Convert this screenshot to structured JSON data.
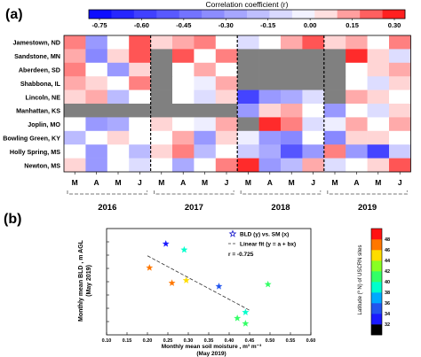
{
  "panel_a": {
    "label": "(a)",
    "colorbar_title": "Correlation coefficient (r)",
    "colorbar_ticks": [
      "-0.75",
      "-0.60",
      "-0.45",
      "-0.30",
      "-0.15",
      "0.00",
      "0.15",
      "0.30"
    ],
    "sites": [
      "Jamestown, ND",
      "Sandstone, MN",
      "Aberdeen, SD",
      "Shabbona, IL",
      "Lincoln, NE",
      "Manhattan, KS",
      "Joplin, MO",
      "Bowling Green, KY",
      "Holly Spring, MS",
      "Newton, MS"
    ],
    "months": [
      "M",
      "A",
      "M",
      "J"
    ],
    "years": [
      "2016",
      "2017",
      "2018",
      "2019"
    ]
  },
  "panel_b": {
    "label": "(b)",
    "ylabel_line1": "Monthly mean BLD , m AGL",
    "ylabel_line2": "(May 2019)",
    "xlabel_line1": "Monthly mean soil moisture , m³ m⁻³",
    "xlabel_line2": "(May 2019)",
    "legend_scatter": "BLD (y) vs. SM (x)",
    "legend_fit": "Linear fit (y = a + bx)",
    "legend_r": "r =  -0.725",
    "colorbar_title": "Latitude (º N) of USCRN sites",
    "colorbar_ticks": [
      "32",
      "34",
      "36",
      "38",
      "40",
      "42",
      "44",
      "46",
      "48"
    ]
  },
  "chart_data": [
    {
      "type": "heatmap",
      "title": "",
      "rows": [
        "Jamestown, ND",
        "Sandstone, MN",
        "Aberdeen, SD",
        "Shabbona, IL",
        "Lincoln, NE",
        "Manhattan, KS",
        "Joplin, MO",
        "Bowling Green, KY",
        "Holly Spring, MS",
        "Newton, MS"
      ],
      "columns": [
        "2016 M",
        "2016 A",
        "2016 M",
        "2016 J",
        "2017 M",
        "2017 A",
        "2017 M",
        "2017 J",
        "2018 M",
        "2018 A",
        "2018 M",
        "2018 J",
        "2019 M",
        "2019 A",
        "2019 M",
        "2019 J"
      ],
      "color_range": [
        -0.75,
        0.3
      ],
      "missing": null,
      "values": [
        [
          0.15,
          -0.3,
          0.0,
          0.2,
          0.05,
          0.1,
          0.15,
          0.0,
          -0.1,
          0.0,
          0.1,
          0.2,
          0.05,
          0.1,
          0.0,
          0.15
        ],
        [
          0.1,
          -0.35,
          0.05,
          0.2,
          null,
          0.2,
          0.0,
          0.15,
          null,
          null,
          null,
          null,
          null,
          0.25,
          0.05,
          -0.1
        ],
        [
          0.15,
          0.0,
          -0.3,
          0.05,
          null,
          0.0,
          0.1,
          0.0,
          null,
          null,
          null,
          null,
          null,
          0.0,
          0.05,
          0.1
        ],
        [
          0.1,
          0.05,
          0.0,
          0.15,
          null,
          0.0,
          -0.05,
          0.1,
          null,
          null,
          null,
          null,
          null,
          0.0,
          -0.1,
          0.05
        ],
        [
          0.05,
          0.1,
          -0.2,
          0.0,
          null,
          0.0,
          -0.1,
          0.05,
          -0.55,
          -0.3,
          -0.25,
          -0.1,
          null,
          0.1,
          0.05,
          0.0
        ],
        [
          null,
          null,
          null,
          null,
          null,
          null,
          null,
          null,
          -0.3,
          0.05,
          0.1,
          0.0,
          -0.3,
          0.0,
          -0.1,
          0.05
        ],
        [
          0.0,
          -0.3,
          -0.25,
          0.0,
          0.05,
          0.0,
          -0.05,
          0.1,
          null,
          0.25,
          0.15,
          -0.1,
          -0.05,
          0.1,
          0.0,
          0.1
        ],
        [
          -0.2,
          0.0,
          0.05,
          0.0,
          0.0,
          0.1,
          -0.3,
          0.05,
          -0.05,
          -0.3,
          -0.35,
          0.0,
          -0.35,
          0.05,
          0.05,
          0.0
        ],
        [
          0.0,
          -0.3,
          0.0,
          -0.2,
          0.05,
          0.15,
          -0.2,
          0.0,
          -0.15,
          -0.25,
          -0.5,
          -0.3,
          0.15,
          -0.3,
          -0.55,
          -0.15
        ],
        [
          0.05,
          -0.3,
          0.0,
          -0.1,
          0.0,
          -0.25,
          0.0,
          0.15,
          0.25,
          -0.3,
          -0.2,
          0.1,
          -0.1,
          0.0,
          0.05,
          0.2
        ]
      ]
    },
    {
      "type": "scatter",
      "title": "",
      "xlabel": "Monthly mean soil moisture , m³ m⁻³ (May 2019)",
      "ylabel": "Monthly mean BLD , m AGL (May 2019)",
      "xlim": [
        0.1,
        0.6
      ],
      "x_ticks": [
        "0.10",
        "0.15",
        "0.20",
        "0.25",
        "0.30",
        "0.35",
        "0.40",
        "0.45",
        "0.50",
        "0.55",
        "0.60"
      ],
      "grid": false,
      "legend_position": "top-right",
      "series": [
        {
          "name": "BLD (y) vs. SM (x)",
          "color_by": "latitude",
          "points": [
            {
              "x": 0.245,
              "y": 1885,
              "lat": 33.5
            },
            {
              "x": 0.205,
              "y": 1705,
              "lat": 46.0
            },
            {
              "x": 0.26,
              "y": 1590,
              "lat": 47.0
            },
            {
              "x": 0.295,
              "y": 1610,
              "lat": 44.5
            },
            {
              "x": 0.29,
              "y": 1840,
              "lat": 39.0
            },
            {
              "x": 0.375,
              "y": 1565,
              "lat": 35.0
            },
            {
              "x": 0.495,
              "y": 1580,
              "lat": 40.5
            },
            {
              "x": 0.44,
              "y": 1370,
              "lat": 38.0
            },
            {
              "x": 0.42,
              "y": 1325,
              "lat": 40.0
            },
            {
              "x": 0.44,
              "y": 1285,
              "lat": 40.5
            }
          ]
        },
        {
          "name": "Linear fit (y = a + bx)",
          "type": "line",
          "style": "dashed",
          "x": [
            0.2,
            0.45
          ],
          "y": [
            1795,
            1385
          ]
        }
      ],
      "annotation": "r =  -0.725",
      "colorbar": {
        "label": "Latitude (º N) of USCRN sites",
        "range": [
          30,
          50
        ]
      }
    }
  ],
  "colors": {
    "heat_neg": "#0000ff",
    "heat_zero": "#ffffff",
    "heat_pos": "#ff0000",
    "missing": "#808080",
    "divider": "#000000"
  }
}
